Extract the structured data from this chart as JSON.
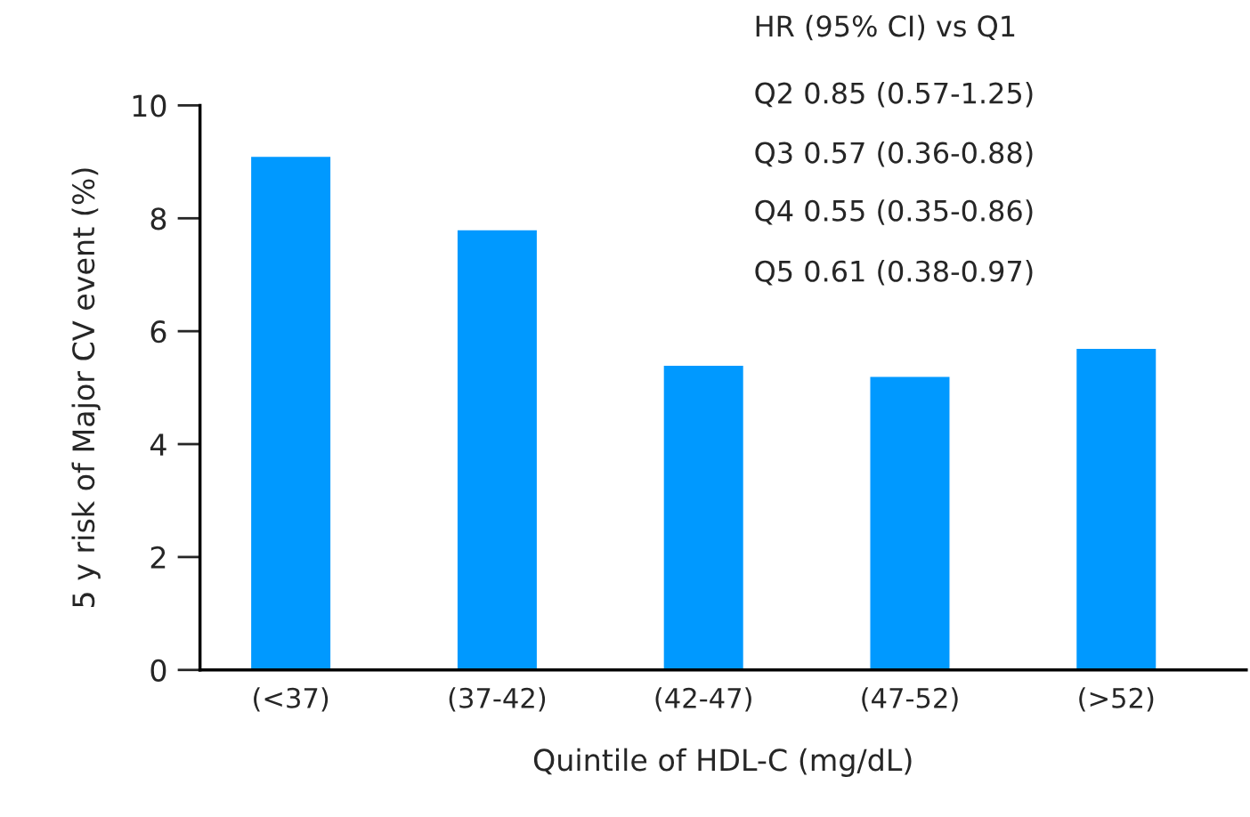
{
  "chart_data": {
    "type": "bar",
    "xlabel": "Quintile of HDL-C (mg/dL)",
    "ylabel": "5 y risk of Major CV event (%)",
    "categories": [
      "(<37)",
      "(37-42)",
      "(42-47)",
      "(47-52)",
      "(>52)"
    ],
    "values": [
      9.1,
      7.8,
      5.4,
      5.2,
      5.7
    ],
    "color": "#0099ff",
    "ylim": [
      0,
      10
    ],
    "yticks": [
      0,
      2,
      4,
      6,
      8,
      10
    ],
    "grid": false,
    "legend": false,
    "annotations": [
      "HR (95% CI) vs Q1",
      "Q2 0.85 (0.57-1.25)",
      "Q3 0.57 (0.36-0.88)",
      "Q4 0.55 (0.35-0.86)",
      "Q5 0.61 (0.38-0.97)"
    ]
  }
}
